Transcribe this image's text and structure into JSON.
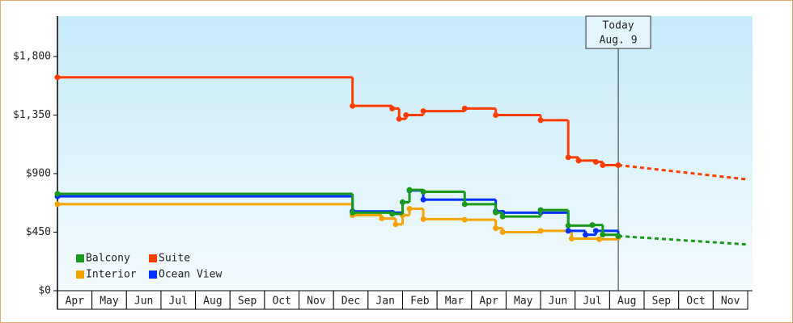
{
  "chart_data": {
    "type": "step-line",
    "categories": [
      "Apr",
      "May",
      "Jun",
      "Jul",
      "Aug",
      "Sep",
      "Oct",
      "Nov",
      "Dec",
      "Jan",
      "Feb",
      "Mar",
      "Apr",
      "May",
      "Jun",
      "Jul",
      "Aug",
      "Sep",
      "Oct",
      "Nov"
    ],
    "xlim": [
      0,
      20
    ],
    "ylim": [
      0,
      2110
    ],
    "yticks": [
      {
        "value": 0,
        "label": "$0"
      },
      {
        "value": 450,
        "label": "$450"
      },
      {
        "value": 900,
        "label": "$900"
      },
      {
        "value": 1350,
        "label": "$1,350"
      },
      {
        "value": 1800,
        "label": "$1,800"
      }
    ],
    "today": {
      "x": 16.25,
      "title": "Today",
      "label": "Aug. 9"
    },
    "series": [
      {
        "name": "Balcony",
        "color": "#1a9a1a",
        "x": [
          0,
          8.55,
          9.7,
          10.0,
          10.2,
          10.6,
          11.8,
          12.7,
          12.9,
          14.0,
          14.8,
          15.5,
          15.8,
          16.25
        ],
        "values": [
          745,
          600,
          590,
          680,
          775,
          760,
          665,
          600,
          570,
          620,
          500,
          505,
          430,
          420
        ],
        "forecast_x": [
          16.25,
          20
        ],
        "forecast_values": [
          420,
          355
        ]
      },
      {
        "name": "Suite",
        "color": "#ff3d00",
        "x": [
          0,
          8.55,
          9.7,
          9.9,
          10.1,
          10.6,
          11.8,
          12.7,
          14.0,
          14.8,
          15.1,
          15.6,
          15.8,
          16.25
        ],
        "values": [
          1640,
          1420,
          1400,
          1320,
          1350,
          1380,
          1400,
          1350,
          1310,
          1025,
          1000,
          990,
          965,
          965
        ],
        "forecast_x": [
          16.25,
          20
        ],
        "forecast_values": [
          965,
          855
        ]
      },
      {
        "name": "Interior",
        "color": "#f5a300",
        "x": [
          0,
          8.55,
          9.4,
          9.8,
          10.0,
          10.2,
          10.6,
          11.8,
          12.7,
          12.9,
          14.0,
          14.9,
          15.7,
          16.25
        ],
        "values": [
          665,
          580,
          555,
          510,
          580,
          630,
          550,
          545,
          480,
          450,
          460,
          400,
          395,
          410
        ]
      },
      {
        "name": "Ocean View",
        "color": "#0033ff",
        "x": [
          0,
          8.55,
          9.7,
          10.0,
          10.2,
          10.6,
          12.7,
          12.9,
          14.0,
          14.8,
          15.3,
          15.6,
          16.25
        ],
        "values": [
          725,
          610,
          600,
          680,
          770,
          700,
          610,
          600,
          600,
          460,
          430,
          460,
          420
        ]
      }
    ]
  }
}
